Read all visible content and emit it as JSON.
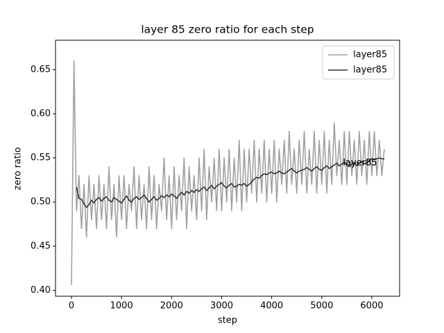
{
  "chart_data": {
    "type": "line",
    "title": "layer 85 zero ratio for each step",
    "xlabel": "step",
    "ylabel": "zero ratio",
    "x": [
      0,
      50,
      100,
      150,
      200,
      250,
      300,
      350,
      400,
      450,
      500,
      550,
      600,
      650,
      700,
      750,
      800,
      850,
      900,
      950,
      1000,
      1050,
      1100,
      1150,
      1200,
      1250,
      1300,
      1350,
      1400,
      1450,
      1500,
      1550,
      1600,
      1650,
      1700,
      1750,
      1800,
      1850,
      1900,
      1950,
      2000,
      2050,
      2100,
      2150,
      2200,
      2250,
      2300,
      2350,
      2400,
      2450,
      2500,
      2550,
      2600,
      2650,
      2700,
      2750,
      2800,
      2850,
      2900,
      2950,
      3000,
      3050,
      3100,
      3150,
      3200,
      3250,
      3300,
      3350,
      3400,
      3450,
      3500,
      3550,
      3600,
      3650,
      3700,
      3750,
      3800,
      3850,
      3900,
      3950,
      4000,
      4050,
      4100,
      4150,
      4200,
      4250,
      4300,
      4350,
      4400,
      4450,
      4500,
      4550,
      4600,
      4650,
      4700,
      4750,
      4800,
      4850,
      4900,
      4950,
      5000,
      5050,
      5100,
      5150,
      5200,
      5250,
      5300,
      5350,
      5400,
      5450,
      5500,
      5550,
      5600,
      5650,
      5700,
      5750,
      5800,
      5850,
      5900,
      5950,
      6000,
      6050,
      6100,
      6150,
      6200,
      6250
    ],
    "series": [
      {
        "name": "layer85",
        "color": "#a0a0a0",
        "values": [
          0.406,
          0.66,
          0.49,
          0.53,
          0.47,
          0.52,
          0.46,
          0.53,
          0.48,
          0.52,
          0.47,
          0.53,
          0.48,
          0.52,
          0.47,
          0.54,
          0.48,
          0.52,
          0.46,
          0.53,
          0.48,
          0.53,
          0.47,
          0.52,
          0.49,
          0.54,
          0.47,
          0.53,
          0.48,
          0.52,
          0.47,
          0.54,
          0.48,
          0.53,
          0.47,
          0.52,
          0.49,
          0.55,
          0.48,
          0.53,
          0.47,
          0.54,
          0.48,
          0.53,
          0.49,
          0.55,
          0.47,
          0.54,
          0.49,
          0.53,
          0.48,
          0.55,
          0.49,
          0.56,
          0.48,
          0.54,
          0.5,
          0.55,
          0.49,
          0.56,
          0.49,
          0.55,
          0.5,
          0.56,
          0.49,
          0.55,
          0.5,
          0.57,
          0.49,
          0.56,
          0.5,
          0.56,
          0.51,
          0.57,
          0.5,
          0.56,
          0.51,
          0.57,
          0.5,
          0.56,
          0.51,
          0.57,
          0.5,
          0.56,
          0.52,
          0.57,
          0.51,
          0.58,
          0.52,
          0.56,
          0.51,
          0.57,
          0.52,
          0.58,
          0.51,
          0.56,
          0.52,
          0.58,
          0.51,
          0.57,
          0.52,
          0.58,
          0.51,
          0.57,
          0.52,
          0.59,
          0.53,
          0.57,
          0.52,
          0.58,
          0.52,
          0.58,
          0.53,
          0.57,
          0.52,
          0.58,
          0.53,
          0.57,
          0.52,
          0.58,
          0.53,
          0.58,
          0.53,
          0.57,
          0.53,
          0.56
        ]
      },
      {
        "name": "layer85",
        "color": "#333333",
        "values": [
          null,
          null,
          0.517,
          0.504,
          0.503,
          0.498,
          0.494,
          0.497,
          0.502,
          0.499,
          0.503,
          0.505,
          0.501,
          0.504,
          0.506,
          0.502,
          0.5,
          0.505,
          0.503,
          0.501,
          0.499,
          0.503,
          0.507,
          0.502,
          0.5,
          0.504,
          0.506,
          0.503,
          0.505,
          0.508,
          0.504,
          0.5,
          0.503,
          0.506,
          0.502,
          0.504,
          0.507,
          0.505,
          0.508,
          0.506,
          0.509,
          0.507,
          0.504,
          0.508,
          0.511,
          0.508,
          0.512,
          0.51,
          0.513,
          0.511,
          0.514,
          0.512,
          0.515,
          0.517,
          0.513,
          0.516,
          0.519,
          0.515,
          0.518,
          0.52,
          0.522,
          0.518,
          0.516,
          0.519,
          0.521,
          0.517,
          0.518,
          0.52,
          0.519,
          0.521,
          0.518,
          0.52,
          0.523,
          0.526,
          0.528,
          0.527,
          0.53,
          0.532,
          0.531,
          0.533,
          0.534,
          0.532,
          0.533,
          0.535,
          0.533,
          0.532,
          0.534,
          0.536,
          0.538,
          0.535,
          0.533,
          0.535,
          0.536,
          0.537,
          0.539,
          0.537,
          0.535,
          0.538,
          0.54,
          0.537,
          0.536,
          0.539,
          0.541,
          0.538,
          0.54,
          0.542,
          0.544,
          0.541,
          0.543,
          0.545,
          0.542,
          0.54,
          0.543,
          0.545,
          0.541,
          0.544,
          0.546,
          0.543,
          0.545,
          0.547,
          0.549,
          0.548,
          0.549,
          0.55,
          0.549,
          0.549
        ]
      }
    ],
    "annotations": [
      "layer85",
      "layer85"
    ],
    "xlim": [
      -319,
      6555
    ],
    "ylim": [
      0.3932,
      0.6834
    ],
    "xticks": [
      0,
      1000,
      2000,
      3000,
      4000,
      5000,
      6000
    ],
    "yticks": [
      {
        "value": 0.4,
        "label": "0.40"
      },
      0.45,
      {
        "value": 0.5,
        "label": "0.50"
      },
      0.55,
      {
        "value": 0.6,
        "label": "0.60"
      },
      0.65
    ],
    "legend": "upper right"
  }
}
